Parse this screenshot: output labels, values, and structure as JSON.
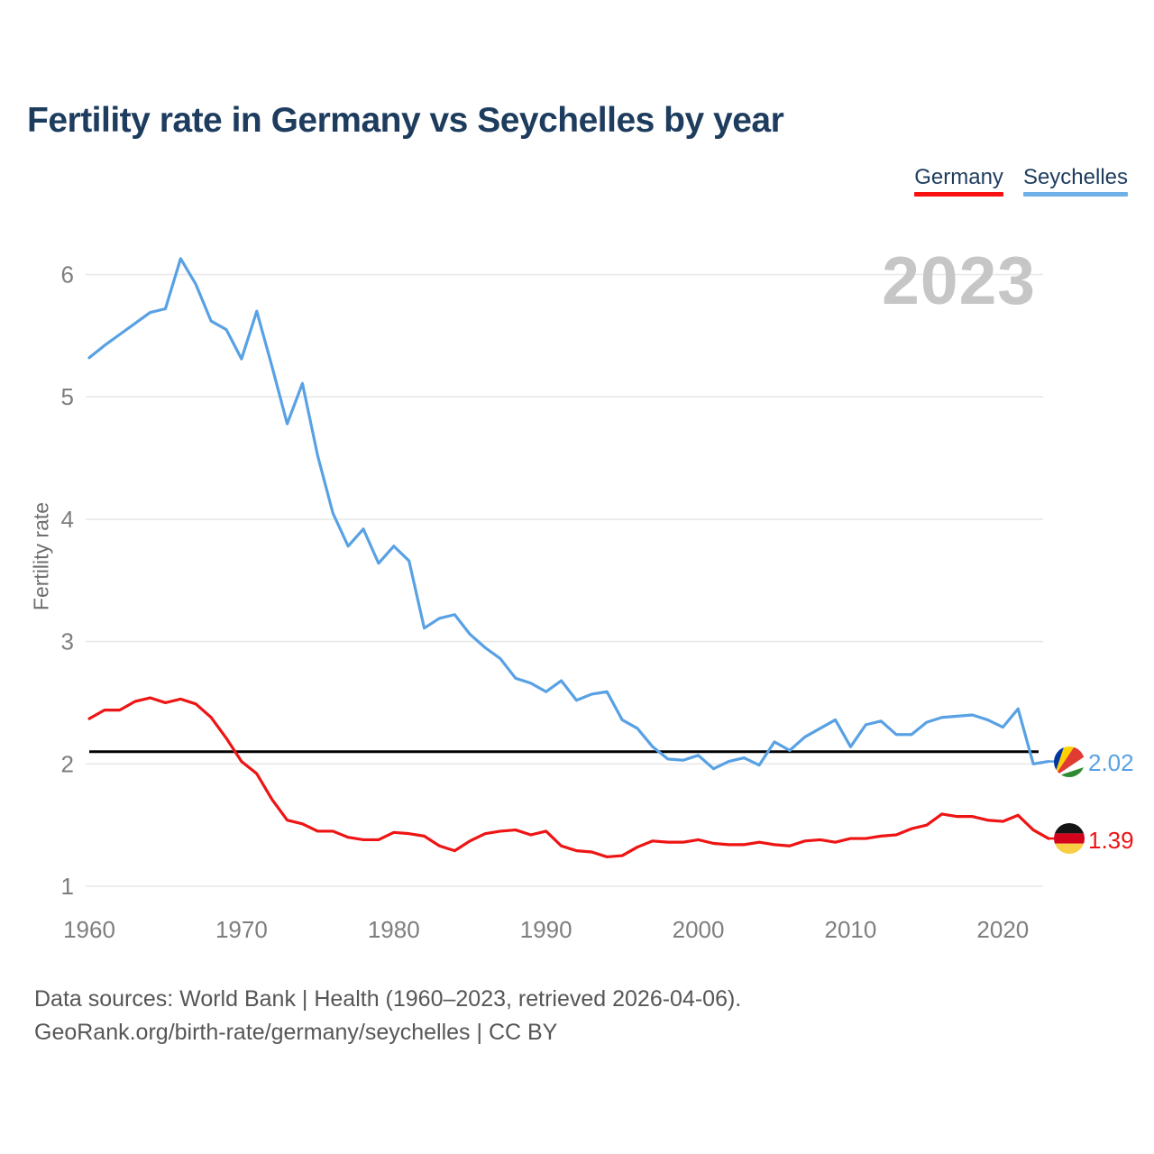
{
  "page": {
    "title": "Fertility rate in Germany vs Seychelles by year",
    "watermark": "2023"
  },
  "legend": {
    "items": [
      {
        "label": "Germany",
        "color": "#f91111"
      },
      {
        "label": "Seychelles",
        "color": "#6fb0e7"
      }
    ]
  },
  "footer": {
    "line1": "Data sources: World Bank | Health (1960–2023, retrieved 2026-04-06).",
    "line2": "GeoRank.org/birth-rate/germany/seychelles | CC BY"
  },
  "chart_data": {
    "type": "line",
    "title": "Fertility rate in Germany vs Seychelles by year",
    "xlabel": "",
    "ylabel": "Fertility rate",
    "watermark": "2023",
    "grid": true,
    "legend_position": "top-right",
    "xlim": [
      1960,
      2023
    ],
    "ylim": [
      1,
      6.35
    ],
    "x_ticks": [
      1960,
      1970,
      1980,
      1990,
      2000,
      2010,
      2020
    ],
    "y_ticks": [
      1,
      2,
      3,
      4,
      5,
      6
    ],
    "reference_line": {
      "value": 2.1,
      "color": "#000000"
    },
    "years": [
      1960,
      1961,
      1962,
      1963,
      1964,
      1965,
      1966,
      1967,
      1968,
      1969,
      1970,
      1971,
      1972,
      1973,
      1974,
      1975,
      1976,
      1977,
      1978,
      1979,
      1980,
      1981,
      1982,
      1983,
      1984,
      1985,
      1986,
      1987,
      1988,
      1989,
      1990,
      1991,
      1992,
      1993,
      1994,
      1995,
      1996,
      1997,
      1998,
      1999,
      2000,
      2001,
      2002,
      2003,
      2004,
      2005,
      2006,
      2007,
      2008,
      2009,
      2010,
      2011,
      2012,
      2013,
      2014,
      2015,
      2016,
      2017,
      2018,
      2019,
      2020,
      2021,
      2022,
      2023
    ],
    "series": [
      {
        "name": "Germany",
        "color": "#ee1414",
        "end_label": "1.39",
        "flag": "germany",
        "values": [
          2.37,
          2.44,
          2.44,
          2.51,
          2.54,
          2.5,
          2.53,
          2.49,
          2.38,
          2.21,
          2.02,
          1.92,
          1.71,
          1.54,
          1.51,
          1.45,
          1.45,
          1.4,
          1.38,
          1.38,
          1.44,
          1.43,
          1.41,
          1.33,
          1.29,
          1.37,
          1.43,
          1.45,
          1.46,
          1.42,
          1.45,
          1.33,
          1.29,
          1.28,
          1.24,
          1.25,
          1.32,
          1.37,
          1.36,
          1.36,
          1.38,
          1.35,
          1.34,
          1.34,
          1.36,
          1.34,
          1.33,
          1.37,
          1.38,
          1.36,
          1.39,
          1.39,
          1.41,
          1.42,
          1.47,
          1.5,
          1.59,
          1.57,
          1.57,
          1.54,
          1.53,
          1.58,
          1.46,
          1.39
        ]
      },
      {
        "name": "Seychelles",
        "color": "#58a1e4",
        "end_label": "2.02",
        "flag": "seychelles",
        "values": [
          5.32,
          5.42,
          5.51,
          5.6,
          5.69,
          5.72,
          6.13,
          5.92,
          5.62,
          5.55,
          5.31,
          5.7,
          5.25,
          4.78,
          5.11,
          4.52,
          4.05,
          3.78,
          3.92,
          3.64,
          3.78,
          3.66,
          3.11,
          3.19,
          3.22,
          3.06,
          2.95,
          2.86,
          2.7,
          2.66,
          2.59,
          2.68,
          2.52,
          2.57,
          2.59,
          2.36,
          2.29,
          2.14,
          2.04,
          2.03,
          2.07,
          1.96,
          2.02,
          2.05,
          1.99,
          2.18,
          2.11,
          2.22,
          2.29,
          2.36,
          2.14,
          2.32,
          2.35,
          2.24,
          2.24,
          2.34,
          2.38,
          2.39,
          2.4,
          2.36,
          2.3,
          2.45,
          2.0,
          2.02
        ]
      }
    ]
  }
}
